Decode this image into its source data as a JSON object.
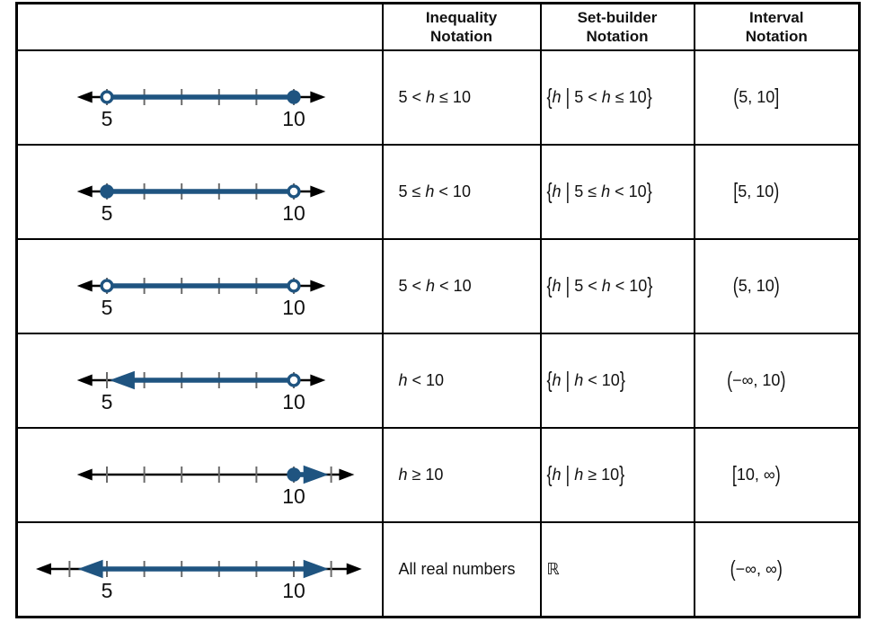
{
  "colors": {
    "blue": "#1f5480",
    "tick": "#6a6a6a",
    "axis": "#000000",
    "text": "#111111",
    "border": "#000000",
    "background": "#ffffff"
  },
  "header": [
    "",
    "Inequality\nNotation",
    "Set-builder\nNotation",
    "Interval\nNotation"
  ],
  "rows": [
    {
      "inequality": "5 < *h* ≤ 10",
      "set_builder": "`{`*h* `|` 5 < *h* ≤ 10`}`",
      "interval": "`(`5, 10`]`",
      "numberline": {
        "axis": [
          4.2,
          10.85
        ],
        "ticks": [
          5,
          6,
          7,
          8,
          9,
          10
        ],
        "labels": [
          {
            "v": 5,
            "text": "5"
          },
          {
            "v": 10,
            "text": "10"
          }
        ],
        "segment": {
          "from": 5,
          "to": 10,
          "left": "open",
          "right": "closed"
        }
      }
    },
    {
      "inequality": "5 ≤ *h* < 10",
      "set_builder": "`{`*h* `|` 5 ≤ *h* < 10`}`",
      "interval": "`[`5, 10`)`",
      "numberline": {
        "axis": [
          4.2,
          10.85
        ],
        "ticks": [
          5,
          6,
          7,
          8,
          9,
          10
        ],
        "labels": [
          {
            "v": 5,
            "text": "5"
          },
          {
            "v": 10,
            "text": "10"
          }
        ],
        "segment": {
          "from": 5,
          "to": 10,
          "left": "closed",
          "right": "open"
        }
      }
    },
    {
      "inequality": "5 < *h* < 10",
      "set_builder": "`{`*h* `|` 5 < *h* < 10`}`",
      "interval": "`(`5, 10`)`",
      "numberline": {
        "axis": [
          4.2,
          10.85
        ],
        "ticks": [
          5,
          6,
          7,
          8,
          9,
          10
        ],
        "labels": [
          {
            "v": 5,
            "text": "5"
          },
          {
            "v": 10,
            "text": "10"
          }
        ],
        "segment": {
          "from": 5,
          "to": 10,
          "left": "open",
          "right": "open"
        }
      }
    },
    {
      "inequality": "*h* < 10",
      "set_builder": "`{`*h* `|` *h* < 10`}`",
      "interval": "`(`−∞, 10`)`",
      "numberline": {
        "axis": [
          4.2,
          10.85
        ],
        "ticks": [
          5,
          6,
          7,
          8,
          9,
          10
        ],
        "labels": [
          {
            "v": 5,
            "text": "5"
          },
          {
            "v": 10,
            "text": "10"
          }
        ],
        "segment": {
          "from": 5.07,
          "to": 10,
          "left": "arrow",
          "right": "open"
        }
      }
    },
    {
      "inequality": "*h* ≥ 10",
      "set_builder": "`{`*h* `|` *h* ≥ 10`}`",
      "interval": "`[`10, ∞`)`",
      "numberline": {
        "axis": [
          4.2,
          11.62
        ],
        "ticks": [
          5,
          6,
          7,
          8,
          9,
          10,
          11
        ],
        "labels": [
          {
            "v": 10,
            "text": "10"
          }
        ],
        "segment": {
          "from": 10,
          "to": 10.93,
          "left": "closed",
          "right": "arrow"
        }
      }
    },
    {
      "inequality": "All real numbers",
      "set_builder": "ℝ",
      "interval": "`(`−∞, ∞`)`",
      "numberline": {
        "axis": [
          3.1,
          11.82
        ],
        "ticks": [
          4,
          5,
          6,
          7,
          8,
          9,
          10,
          11
        ],
        "labels": [
          {
            "v": 5,
            "text": "5"
          },
          {
            "v": 10,
            "text": "10"
          }
        ],
        "segment": {
          "from": 4.22,
          "to": 10.93,
          "left": "arrow",
          "right": "arrow"
        }
      }
    }
  ]
}
